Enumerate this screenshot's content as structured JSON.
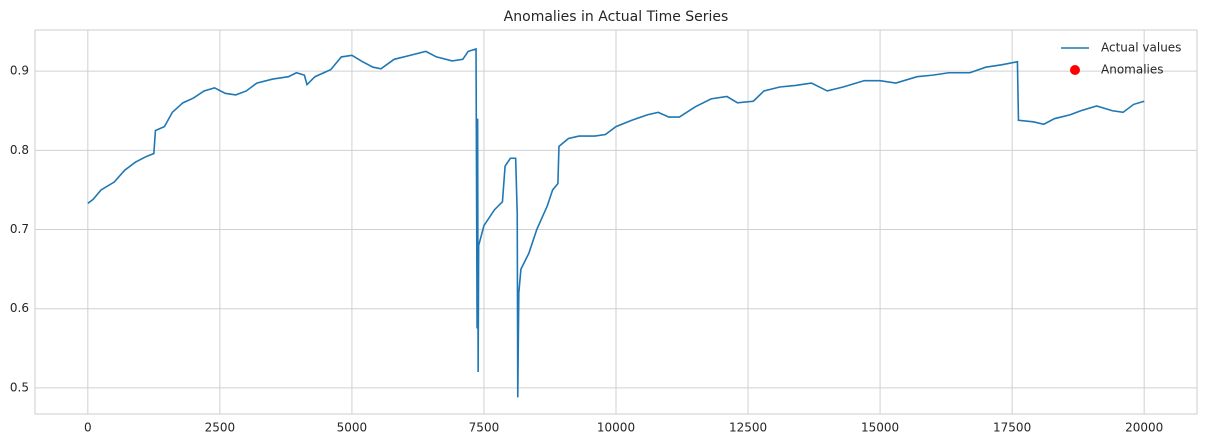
{
  "chart_data": {
    "type": "line",
    "title": "Anomalies in Actual Time Series",
    "xlim": [
      -1000,
      21000
    ],
    "ylim": [
      0.467,
      0.952
    ],
    "xticks": [
      0,
      2500,
      5000,
      7500,
      10000,
      12500,
      15000,
      17500,
      20000
    ],
    "yticks": [
      0.5,
      0.6,
      0.7,
      0.8,
      0.9
    ],
    "grid": true,
    "legend": "upper right",
    "series": [
      {
        "name": "Actual values",
        "color": "#1f77b4",
        "kind": "line",
        "x": [
          0,
          100,
          250,
          500,
          700,
          900,
          1100,
          1250,
          1280,
          1450,
          1600,
          1800,
          2000,
          2200,
          2400,
          2600,
          2800,
          3000,
          3200,
          3500,
          3800,
          3950,
          4100,
          4150,
          4300,
          4600,
          4800,
          5000,
          5200,
          5400,
          5550,
          5800,
          6100,
          6400,
          6600,
          6900,
          7100,
          7200,
          7350,
          7370,
          7380,
          7390,
          7400,
          7500,
          7700,
          7850,
          7900,
          8000,
          8100,
          8130,
          8140,
          8160,
          8200,
          8350,
          8500,
          8700,
          8800,
          8900,
          8920,
          9100,
          9300,
          9600,
          9800,
          10000,
          10300,
          10600,
          10800,
          11000,
          11200,
          11500,
          11800,
          12100,
          12300,
          12600,
          12800,
          13100,
          13400,
          13700,
          14000,
          14300,
          14700,
          15000,
          15300,
          15700,
          16000,
          16300,
          16700,
          17000,
          17300,
          17600,
          17620,
          17900,
          18100,
          18300,
          18600,
          18800,
          19100,
          19400,
          19600,
          19800,
          20000
        ],
        "values": [
          0.733,
          0.738,
          0.75,
          0.76,
          0.775,
          0.785,
          0.792,
          0.796,
          0.825,
          0.83,
          0.848,
          0.86,
          0.866,
          0.875,
          0.879,
          0.872,
          0.87,
          0.875,
          0.885,
          0.89,
          0.893,
          0.898,
          0.895,
          0.883,
          0.893,
          0.902,
          0.918,
          0.92,
          0.912,
          0.905,
          0.903,
          0.915,
          0.92,
          0.925,
          0.918,
          0.913,
          0.915,
          0.925,
          0.928,
          0.575,
          0.84,
          0.52,
          0.68,
          0.705,
          0.725,
          0.735,
          0.78,
          0.79,
          0.79,
          0.72,
          0.488,
          0.62,
          0.65,
          0.67,
          0.7,
          0.73,
          0.75,
          0.758,
          0.805,
          0.815,
          0.818,
          0.818,
          0.82,
          0.83,
          0.838,
          0.845,
          0.848,
          0.842,
          0.842,
          0.855,
          0.865,
          0.868,
          0.86,
          0.862,
          0.875,
          0.88,
          0.882,
          0.885,
          0.875,
          0.88,
          0.888,
          0.888,
          0.885,
          0.893,
          0.895,
          0.898,
          0.898,
          0.905,
          0.908,
          0.912,
          0.838,
          0.836,
          0.833,
          0.84,
          0.845,
          0.85,
          0.856,
          0.85,
          0.848,
          0.858,
          0.862
        ]
      },
      {
        "name": "Anomalies",
        "color": "#ff0000",
        "kind": "scatter",
        "x": [],
        "values": []
      }
    ]
  }
}
